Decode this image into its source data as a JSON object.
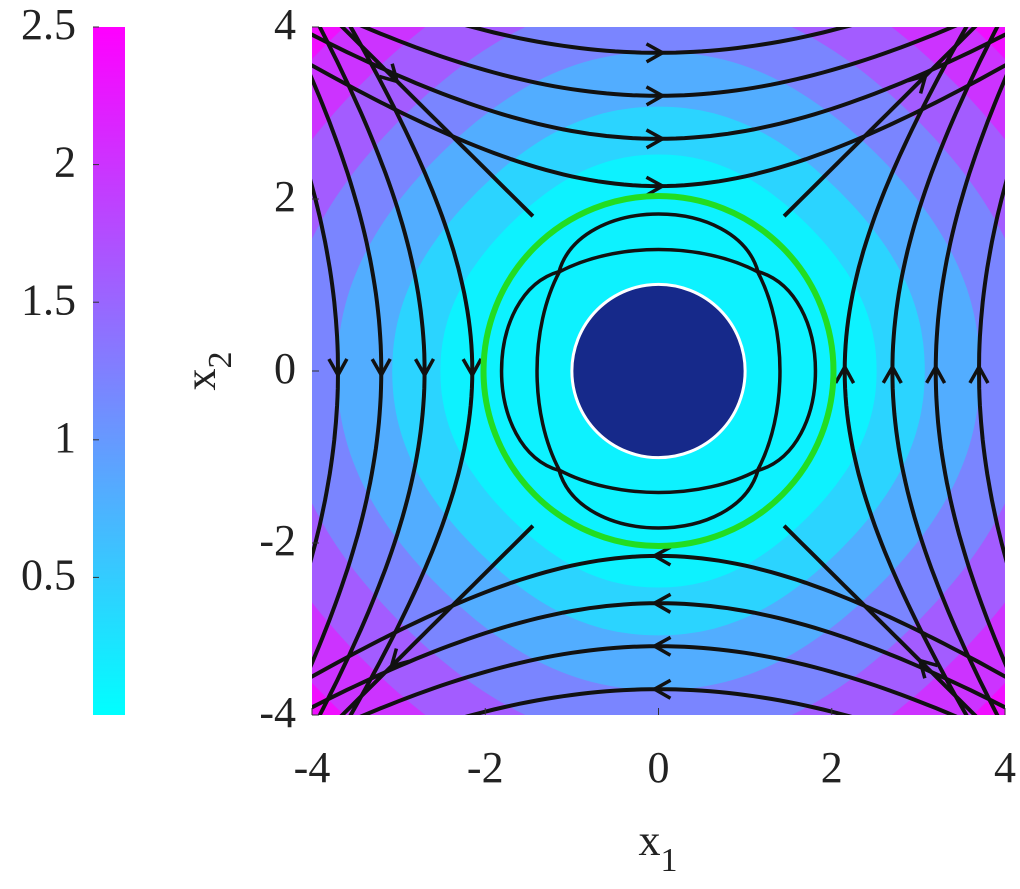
{
  "chart_data": {
    "type": "contour",
    "xlabel": "x",
    "xlabel_subscript": "1",
    "ylabel": "x",
    "ylabel_subscript": "2",
    "xlim": [
      -4,
      4
    ],
    "ylim": [
      -4,
      4
    ],
    "xticks": [
      -4,
      -2,
      0,
      2,
      4
    ],
    "yticks": [
      -4,
      -2,
      0,
      2,
      4
    ],
    "levels": [
      0.25,
      0.6,
      1.0,
      1.4,
      1.8,
      2.2
    ],
    "colormap": [
      "#00ffff",
      "#ff00ff"
    ],
    "clim": [
      0,
      2.5
    ],
    "cticks": [
      0.5,
      1,
      1.5,
      2,
      2.5
    ],
    "grid": false
  }
}
